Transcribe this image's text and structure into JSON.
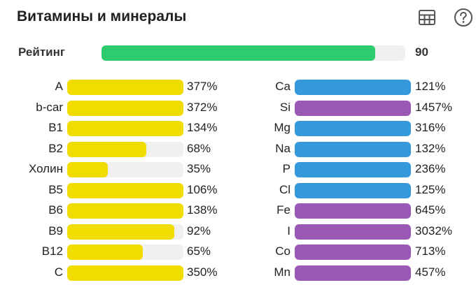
{
  "header": {
    "title": "Витамины и минералы",
    "icons": [
      "table-icon",
      "help-icon"
    ]
  },
  "rating": {
    "label": "Рейтинг",
    "value": "90",
    "fill_fraction": 0.9,
    "color": "#2ecc71"
  },
  "colors": {
    "vitamin": "#f1dc00",
    "mineral_blue": "#3498db",
    "mineral_purple": "#9b59b6",
    "track": "#f0f0f0"
  },
  "vitamins": [
    {
      "label": "A",
      "value": "377%",
      "fill_fraction": 1.0,
      "color": "#f1dc00"
    },
    {
      "label": "b-car",
      "value": "372%",
      "fill_fraction": 1.0,
      "color": "#f1dc00"
    },
    {
      "label": "B1",
      "value": "134%",
      "fill_fraction": 1.0,
      "color": "#f1dc00"
    },
    {
      "label": "B2",
      "value": "68%",
      "fill_fraction": 0.68,
      "color": "#f1dc00"
    },
    {
      "label": "Холин",
      "value": "35%",
      "fill_fraction": 0.35,
      "color": "#f1dc00"
    },
    {
      "label": "B5",
      "value": "106%",
      "fill_fraction": 1.0,
      "color": "#f1dc00"
    },
    {
      "label": "B6",
      "value": "138%",
      "fill_fraction": 1.0,
      "color": "#f1dc00"
    },
    {
      "label": "B9",
      "value": "92%",
      "fill_fraction": 0.92,
      "color": "#f1dc00"
    },
    {
      "label": "B12",
      "value": "65%",
      "fill_fraction": 0.65,
      "color": "#f1dc00"
    },
    {
      "label": "C",
      "value": "350%",
      "fill_fraction": 1.0,
      "color": "#f1dc00"
    }
  ],
  "minerals": [
    {
      "label": "Ca",
      "value": "121%",
      "fill_fraction": 1.0,
      "color": "#3498db"
    },
    {
      "label": "Si",
      "value": "1457%",
      "fill_fraction": 1.0,
      "color": "#9b59b6"
    },
    {
      "label": "Mg",
      "value": "316%",
      "fill_fraction": 1.0,
      "color": "#3498db"
    },
    {
      "label": "Na",
      "value": "132%",
      "fill_fraction": 1.0,
      "color": "#3498db"
    },
    {
      "label": "P",
      "value": "236%",
      "fill_fraction": 1.0,
      "color": "#3498db"
    },
    {
      "label": "Cl",
      "value": "125%",
      "fill_fraction": 1.0,
      "color": "#3498db"
    },
    {
      "label": "Fe",
      "value": "645%",
      "fill_fraction": 1.0,
      "color": "#9b59b6"
    },
    {
      "label": "I",
      "value": "3032%",
      "fill_fraction": 1.0,
      "color": "#9b59b6"
    },
    {
      "label": "Co",
      "value": "713%",
      "fill_fraction": 1.0,
      "color": "#9b59b6"
    },
    {
      "label": "Mn",
      "value": "457%",
      "fill_fraction": 1.0,
      "color": "#9b59b6"
    }
  ]
}
